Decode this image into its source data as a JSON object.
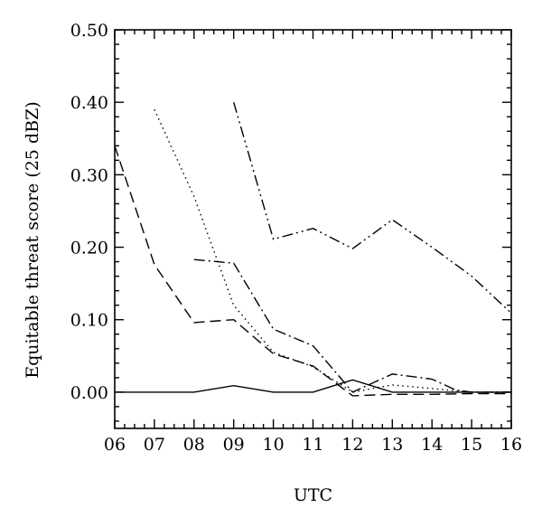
{
  "chart_data": {
    "type": "line",
    "xlabel": "UTC",
    "ylabel": "Equitable threat score (25 dBZ)",
    "xlim": [
      6,
      16
    ],
    "ylim": [
      -0.05,
      0.5
    ],
    "x_tick_values": [
      6,
      7,
      8,
      9,
      10,
      11,
      12,
      13,
      14,
      15,
      16
    ],
    "x_tick_labels": [
      "06",
      "07",
      "08",
      "09",
      "10",
      "11",
      "12",
      "13",
      "14",
      "15",
      "16"
    ],
    "y_tick_values": [
      0.0,
      0.1,
      0.2,
      0.3,
      0.4,
      0.5
    ],
    "y_tick_labels": [
      "0.00",
      "0.10",
      "0.20",
      "0.30",
      "0.40",
      "0.50"
    ],
    "grid": false,
    "legend": "none",
    "series": [
      {
        "style": "solid",
        "x": [
          6,
          7,
          8,
          9,
          10,
          11,
          12,
          13,
          14,
          15,
          16
        ],
        "y": [
          0.0,
          0.0,
          0.0,
          0.009,
          0.0,
          0.0,
          0.017,
          0.0,
          0.0,
          0.0,
          0.0
        ]
      },
      {
        "style": "dashed",
        "x": [
          6,
          7,
          8,
          9,
          10,
          11,
          12,
          13,
          14,
          15,
          16
        ],
        "y": [
          0.34,
          0.176,
          0.096,
          0.1,
          0.053,
          0.036,
          -0.005,
          -0.003,
          -0.003,
          -0.002,
          -0.002
        ]
      },
      {
        "style": "dotted",
        "x": [
          7,
          8,
          9,
          10,
          11,
          12,
          13,
          14,
          15,
          16
        ],
        "y": [
          0.39,
          0.27,
          0.12,
          0.055,
          0.035,
          0.0,
          0.01,
          0.005,
          0.0,
          0.0
        ]
      },
      {
        "style": "dashdot",
        "x": [
          8,
          9,
          10,
          11,
          12,
          13,
          14,
          14.6,
          15,
          16
        ],
        "y": [
          0.183,
          0.178,
          0.087,
          0.064,
          0.0,
          0.025,
          0.018,
          0.003,
          0.0,
          0.0
        ]
      },
      {
        "style": "dashdotdot",
        "x": [
          9,
          10,
          11,
          12,
          13,
          14,
          15,
          16
        ],
        "y": [
          0.4,
          0.211,
          0.226,
          0.198,
          0.238,
          0.2,
          0.16,
          0.109
        ]
      }
    ]
  }
}
